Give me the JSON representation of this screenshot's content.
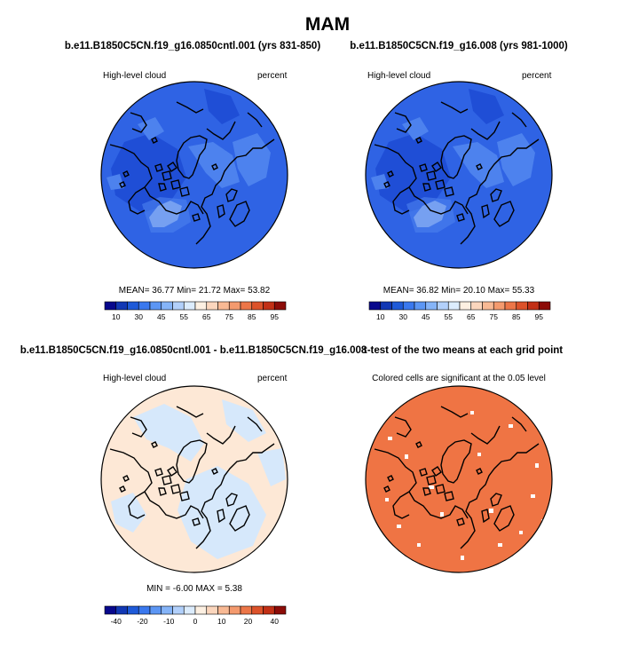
{
  "figure": {
    "main_title": "MAM"
  },
  "panels": [
    {
      "title": "b.e11.B1850C5CN.f19_g16.0850cntl.001 (yrs 831-850)",
      "left_label": "High-level cloud",
      "right_label": "percent",
      "stats": "MEAN=  36.77  Min=  21.72  Max=  53.82"
    },
    {
      "title": "b.e11.B1850C5CN.f19_g16.008 (yrs 981-1000)",
      "left_label": "High-level cloud",
      "right_label": "percent",
      "stats": "MEAN=  36.82  Min=  20.10  Max=  55.33"
    },
    {
      "title": "b.e11.B1850C5CN.f19_g16.0850cntl.001 - b.e11.B1850C5CN.f19_g16.008",
      "left_label": "High-level cloud",
      "right_label": "percent",
      "stats": "MIN =  -6.00 MAX =   5.38"
    },
    {
      "title": "t-test of the two means at each grid point",
      "center_label": "Colored cells are significant at the 0.05 level"
    }
  ],
  "colorbar_abs": {
    "ticks": [
      "10",
      "30",
      "45",
      "55",
      "65",
      "75",
      "85",
      "95"
    ],
    "colors": [
      "#08088c",
      "#1238b4",
      "#1e5ad8",
      "#3a78ee",
      "#5c96f4",
      "#85b4f8",
      "#b2d0fb",
      "#dcecfd",
      "#fdf0e2",
      "#fbd6bd",
      "#f8b994",
      "#f49a6e",
      "#ec7648",
      "#dc522a",
      "#c23016",
      "#8c0c08"
    ]
  },
  "colorbar_diff": {
    "ticks": [
      "-40",
      "-20",
      "-10",
      "0",
      "10",
      "20",
      "40"
    ],
    "colors": [
      "#08088c",
      "#1238b4",
      "#1e5ad8",
      "#3a78ee",
      "#5c96f4",
      "#85b4f8",
      "#b2d0fb",
      "#dcecfd",
      "#fdf0e2",
      "#fbd6bd",
      "#f8b994",
      "#f49a6e",
      "#ec7648",
      "#dc522a",
      "#c23016",
      "#8c0c08"
    ]
  },
  "map_colors": {
    "cloud_base": "#2f63e4",
    "cloud_dark": "#1f4ed6",
    "cloud_light": "#4d82ee",
    "cloud_pale": "#b3cdf5",
    "diff_pos": "#fde8d6",
    "diff_neg": "#d6e8fb",
    "signif": "#ef7444"
  }
}
